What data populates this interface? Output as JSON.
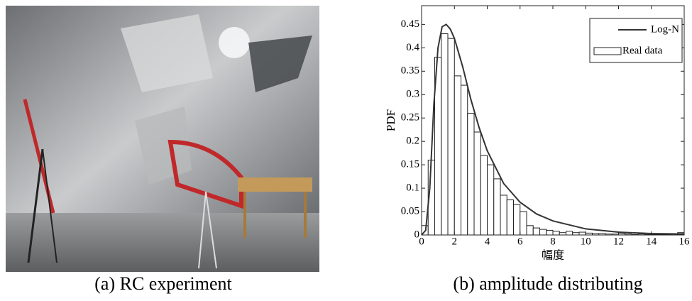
{
  "photo": {
    "caption": "(a) RC experiment"
  },
  "chart_data": {
    "type": "histogram",
    "caption": "(b) amplitude distributing",
    "xlabel": "幅度",
    "ylabel": "PDF",
    "xlim": [
      0,
      16
    ],
    "ylim": [
      0,
      0.49
    ],
    "xticks": [
      0,
      2,
      4,
      6,
      8,
      10,
      12,
      14,
      16
    ],
    "yticks": [
      0,
      0.05,
      0.1,
      0.15,
      0.2,
      0.25,
      0.3,
      0.35,
      0.4,
      0.45
    ],
    "legend": "upper right",
    "series": [
      {
        "name": "Log-N",
        "type": "line",
        "color": "#333333",
        "x": [
          0,
          0.25,
          0.5,
          0.75,
          1,
          1.25,
          1.5,
          1.75,
          2,
          2.5,
          3,
          3.5,
          4,
          5,
          6,
          7,
          8,
          10,
          12,
          14,
          16
        ],
        "values": [
          0,
          0.01,
          0.1,
          0.28,
          0.4,
          0.445,
          0.45,
          0.44,
          0.42,
          0.36,
          0.29,
          0.23,
          0.18,
          0.11,
          0.07,
          0.045,
          0.03,
          0.013,
          0.006,
          0.003,
          0.002
        ]
      },
      {
        "name": "Real data",
        "type": "histogram",
        "color": "#ffffff",
        "bins": [
          0,
          0.4,
          0.8,
          1.2,
          1.6,
          2,
          2.4,
          2.8,
          3.2,
          3.6,
          4,
          4.4,
          4.8,
          5.2,
          5.6,
          6,
          6.4,
          6.8,
          7.2,
          7.6,
          8,
          8.4,
          8.8,
          9.2,
          9.6,
          10,
          10.4,
          10.8,
          11.2,
          11.6,
          12,
          12.4,
          12.8,
          13.2,
          13.6,
          14,
          14.4,
          14.8,
          15.2,
          15.6,
          16
        ],
        "values": [
          0.02,
          0.16,
          0.38,
          0.43,
          0.42,
          0.34,
          0.32,
          0.26,
          0.22,
          0.17,
          0.15,
          0.12,
          0.085,
          0.075,
          0.065,
          0.05,
          0.02,
          0.015,
          0.012,
          0.01,
          0.008,
          0.005,
          0.008,
          0.005,
          0.006,
          0.004,
          0.003,
          0.003,
          0.002,
          0.002,
          0.003,
          0.002,
          0.001,
          0.002,
          0.001,
          0.001,
          0.001,
          0.001,
          0.002,
          0.005
        ]
      }
    ]
  }
}
